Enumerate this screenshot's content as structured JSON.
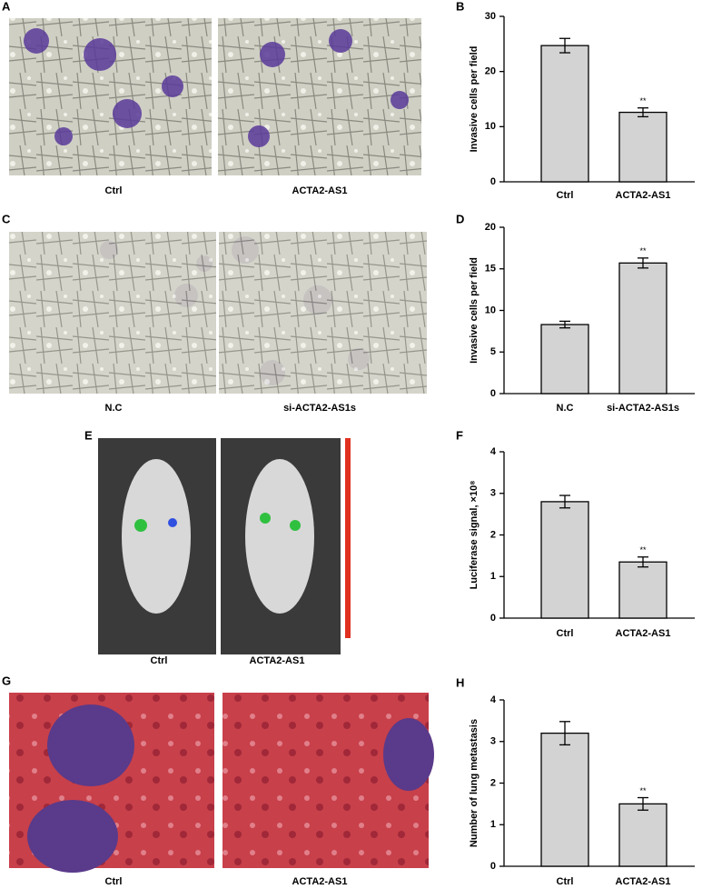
{
  "figure": {
    "panel_labels": [
      "A",
      "B",
      "C",
      "D",
      "E",
      "F",
      "G",
      "H"
    ],
    "image_captions": [
      [
        "Ctrl",
        "ACTA2-AS1"
      ],
      [
        "N.C",
        "si-ACTA2-AS1s"
      ],
      [
        "Ctrl",
        "ACTA2-AS1"
      ],
      [
        "Ctrl",
        "ACTA2-AS1"
      ]
    ]
  },
  "chart_data": [
    {
      "type": "bar",
      "y_label": "Invasive cells per field",
      "categories": [
        "Ctrl",
        "ACTA2-AS1"
      ],
      "values": [
        24.7,
        12.6
      ],
      "errors": [
        1.3,
        0.8
      ],
      "significance": [
        null,
        "**"
      ],
      "color": "#d3d3d3",
      "ylim": [
        0,
        30
      ],
      "yticks": [
        0,
        10,
        20,
        30
      ]
    },
    {
      "type": "bar",
      "y_label": "Invasive cells per field",
      "categories": [
        "N.C",
        "si-ACTA2-AS1s"
      ],
      "values": [
        8.3,
        15.7
      ],
      "errors": [
        0.4,
        0.6
      ],
      "significance": [
        null,
        "**"
      ],
      "color": "#d3d3d3",
      "ylim": [
        0,
        20
      ],
      "yticks": [
        0,
        5,
        10,
        15,
        20
      ]
    },
    {
      "type": "bar",
      "y_label": "Luciferase signal, ×10⁸",
      "categories": [
        "Ctrl",
        "ACTA2-AS1"
      ],
      "values": [
        2.8,
        1.35
      ],
      "errors": [
        0.15,
        0.12
      ],
      "significance": [
        null,
        "**"
      ],
      "color": "#d3d3d3",
      "ylim": [
        0,
        4
      ],
      "yticks": [
        0,
        1,
        2,
        3,
        4
      ]
    },
    {
      "type": "bar",
      "y_label": "Number of lung metastasis",
      "categories": [
        "Ctrl",
        "ACTA2-AS1"
      ],
      "values": [
        3.2,
        1.5
      ],
      "errors": [
        0.28,
        0.15
      ],
      "significance": [
        null,
        "**"
      ],
      "color": "#d3d3d3",
      "ylim": [
        0,
        4
      ],
      "yticks": [
        0,
        1,
        2,
        3,
        4
      ]
    }
  ]
}
